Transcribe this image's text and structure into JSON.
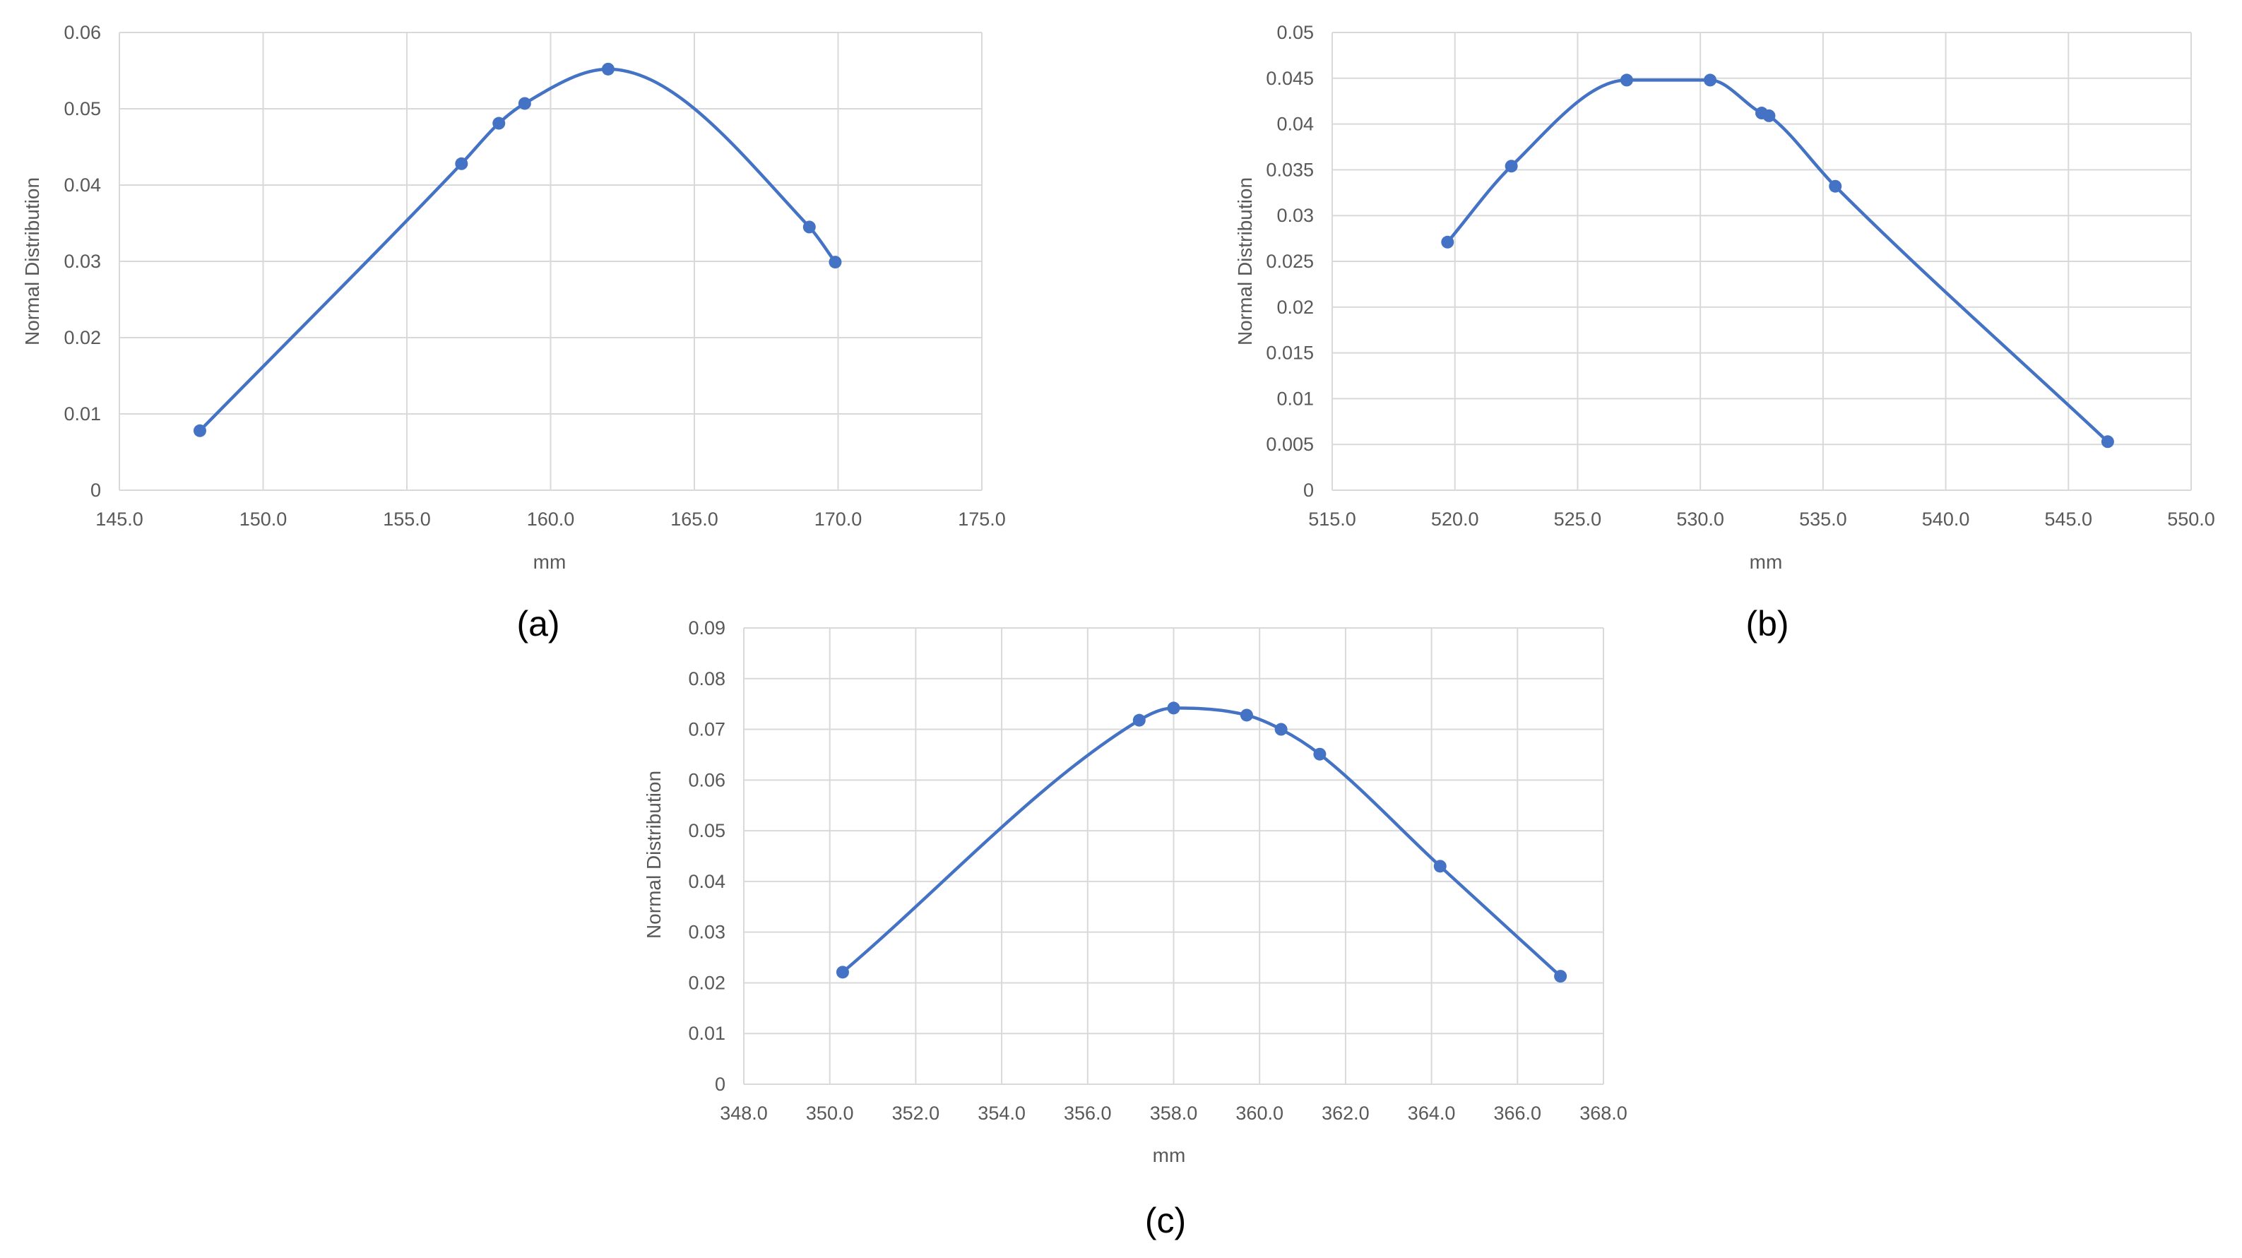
{
  "chart_data": [
    {
      "type": "line",
      "panel_label": "(a)",
      "title": "",
      "xlabel": "mm",
      "ylabel": "Normal Distribution",
      "xlim": [
        145.0,
        175.0
      ],
      "ylim": [
        0,
        0.06
      ],
      "x_ticks": [
        145.0,
        150.0,
        155.0,
        160.0,
        165.0,
        170.0,
        175.0
      ],
      "x_tick_labels": [
        "145.0",
        "150.0",
        "155.0",
        "160.0",
        "165.0",
        "170.0",
        "175.0"
      ],
      "y_ticks": [
        0,
        0.01,
        0.02,
        0.03,
        0.04,
        0.05,
        0.06
      ],
      "y_tick_labels": [
        "0",
        "0.01",
        "0.02",
        "0.03",
        "0.04",
        "0.05",
        "0.06"
      ],
      "grid": true,
      "smooth": true,
      "series": [
        {
          "color": "#4472c4",
          "x": [
            147.8,
            156.9,
            158.2,
            159.1,
            162.0,
            169.0,
            169.9
          ],
          "y": [
            0.0078,
            0.0428,
            0.0481,
            0.0507,
            0.0552,
            0.0345,
            0.0299
          ]
        }
      ]
    },
    {
      "type": "line",
      "panel_label": "(b)",
      "title": "",
      "xlabel": "mm",
      "ylabel": "Normal Distribution",
      "xlim": [
        515.0,
        550.0
      ],
      "ylim": [
        0,
        0.05
      ],
      "x_ticks": [
        515.0,
        520.0,
        525.0,
        530.0,
        535.0,
        540.0,
        545.0,
        550.0
      ],
      "x_tick_labels": [
        "515.0",
        "520.0",
        "525.0",
        "530.0",
        "535.0",
        "540.0",
        "545.0",
        "550.0"
      ],
      "y_ticks": [
        0,
        0.005,
        0.01,
        0.015,
        0.02,
        0.025,
        0.03,
        0.035,
        0.04,
        0.045,
        0.05
      ],
      "y_tick_labels": [
        "0",
        "0.005",
        "0.01",
        "0.015",
        "0.02",
        "0.025",
        "0.03",
        "0.035",
        "0.04",
        "0.045",
        "0.05"
      ],
      "grid": true,
      "smooth": true,
      "series": [
        {
          "color": "#4472c4",
          "x": [
            519.7,
            522.3,
            527.0,
            530.4,
            532.5,
            532.8,
            535.5,
            546.6
          ],
          "y": [
            0.0271,
            0.0354,
            0.0448,
            0.0448,
            0.0412,
            0.0409,
            0.0332,
            0.0053
          ]
        }
      ]
    },
    {
      "type": "line",
      "panel_label": "(c)",
      "title": "",
      "xlabel": "mm",
      "ylabel": "Normal Distribution",
      "xlim": [
        348.0,
        368.0
      ],
      "ylim": [
        0,
        0.09
      ],
      "x_ticks": [
        348.0,
        350.0,
        352.0,
        354.0,
        356.0,
        358.0,
        360.0,
        362.0,
        364.0,
        366.0,
        368.0
      ],
      "x_tick_labels": [
        "348.0",
        "350.0",
        "352.0",
        "354.0",
        "356.0",
        "358.0",
        "360.0",
        "362.0",
        "364.0",
        "366.0",
        "368.0"
      ],
      "y_ticks": [
        0,
        0.01,
        0.02,
        0.03,
        0.04,
        0.05,
        0.06,
        0.07,
        0.08,
        0.09
      ],
      "y_tick_labels": [
        "0",
        "0.01",
        "0.02",
        "0.03",
        "0.04",
        "0.05",
        "0.06",
        "0.07",
        "0.08",
        "0.09"
      ],
      "grid": true,
      "smooth": true,
      "series": [
        {
          "color": "#4472c4",
          "x": [
            350.3,
            357.2,
            358.0,
            359.7,
            360.5,
            361.4,
            364.2,
            367.0
          ],
          "y": [
            0.0221,
            0.0718,
            0.0742,
            0.0728,
            0.07,
            0.0651,
            0.043,
            0.0213
          ]
        }
      ]
    }
  ]
}
